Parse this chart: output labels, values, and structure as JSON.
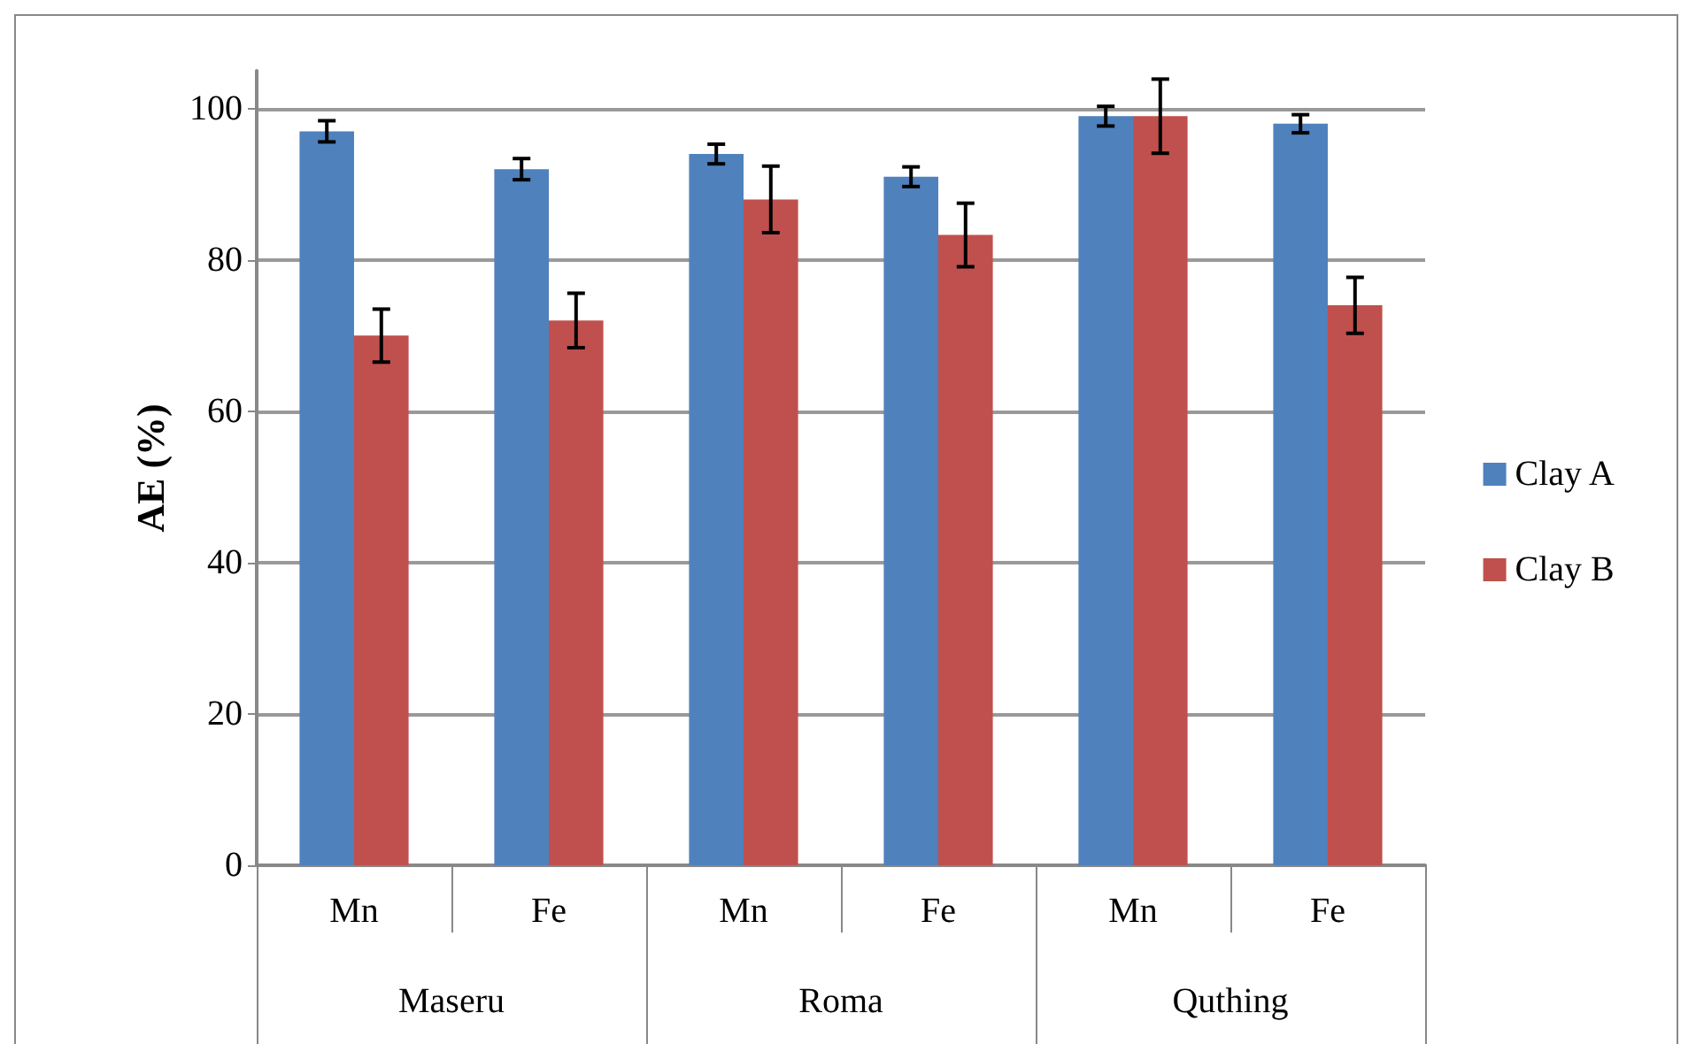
{
  "chart_data": {
    "type": "bar",
    "ylabel": "AE (%)",
    "categories": [
      "Mn",
      "Fe",
      "Mn",
      "Fe",
      "Mn",
      "Fe"
    ],
    "annotations": [
      "Maseru",
      "Roma",
      "Quthing"
    ],
    "series": [
      {
        "name": "Clay A",
        "color": "#4f81bd",
        "values": [
          97,
          92,
          94,
          91,
          99,
          98
        ],
        "errors": [
          1.4,
          1.4,
          1.3,
          1.3,
          1.3,
          1.2
        ]
      },
      {
        "name": "Clay B",
        "color": "#c0504d",
        "values": [
          70,
          72,
          88,
          83.3,
          99,
          74
        ],
        "errors": [
          3.5,
          3.6,
          4.4,
          4.2,
          4.9,
          3.7
        ]
      }
    ],
    "ylim": [
      0,
      105
    ],
    "yticks": [
      0,
      20,
      40,
      60,
      80,
      100
    ],
    "grid": "y",
    "legend": "right"
  }
}
